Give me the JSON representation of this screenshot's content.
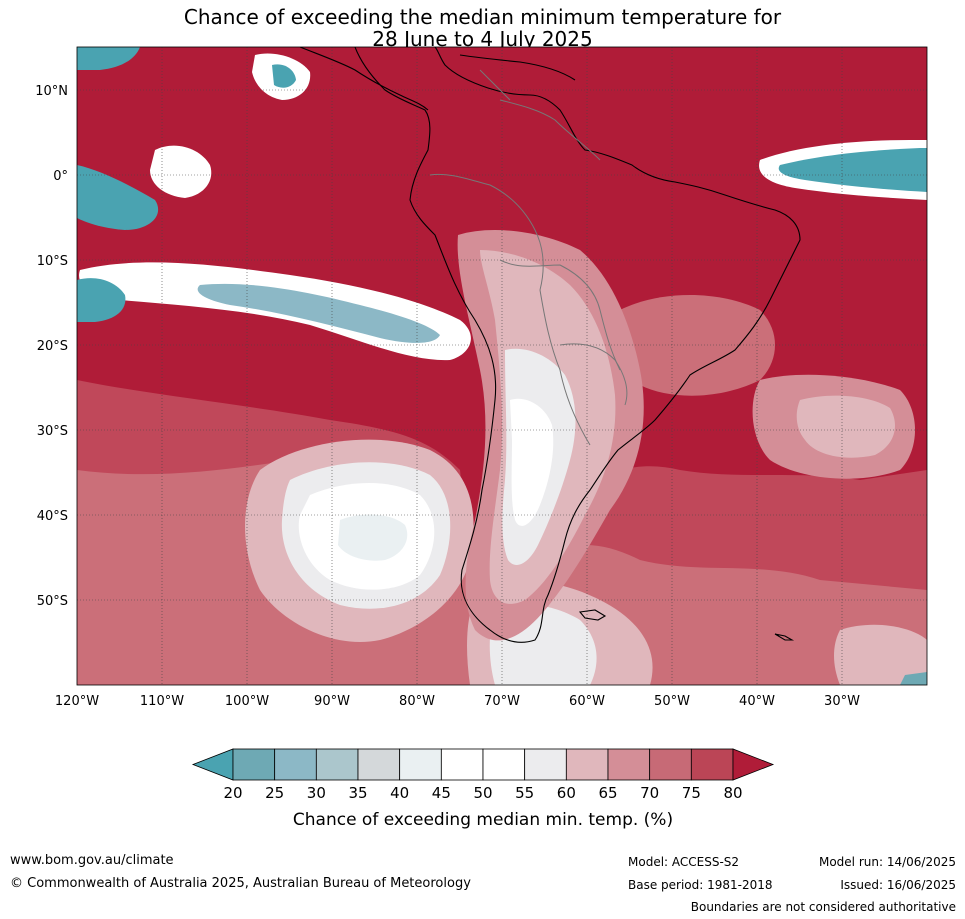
{
  "title_line1": "Chance of exceeding the median minimum temperature for",
  "title_line2": "28 June to 4 July 2025",
  "lat_labels": [
    "10°N",
    "0°",
    "10°S",
    "20°S",
    "30°S",
    "40°S",
    "50°S"
  ],
  "lon_labels": [
    "120°W",
    "110°W",
    "100°W",
    "90°W",
    "80°W",
    "70°W",
    "60°W",
    "50°W",
    "40°W",
    "30°W"
  ],
  "colorbar": {
    "title": "Chance of exceeding median min. temp. (%)",
    "ticks": [
      "20",
      "25",
      "30",
      "35",
      "40",
      "45",
      "50",
      "55",
      "60",
      "65",
      "70",
      "75",
      "80"
    ],
    "colors": [
      "#4aa3b1",
      "#6ea9b4",
      "#8cb8c6",
      "#abc6cc",
      "#d4d8da",
      "#eaf0f2",
      "#ffffff",
      "#ffffff",
      "#ececee",
      "#e0b7bc",
      "#d48e97",
      "#c76a76",
      "#bb4556",
      "#b01c38"
    ]
  },
  "footer": {
    "website": "www.bom.gov.au/climate",
    "copyright": "© Commonwealth of Australia 2025, Australian Bureau of Meteorology",
    "model": "Model: ACCESS-S2",
    "model_run": "Model run: 14/06/2025",
    "base_period": "Base period: 1981-2018",
    "issued": "Issued: 16/06/2025",
    "disclaimer": "Boundaries are not considered authoritative"
  }
}
